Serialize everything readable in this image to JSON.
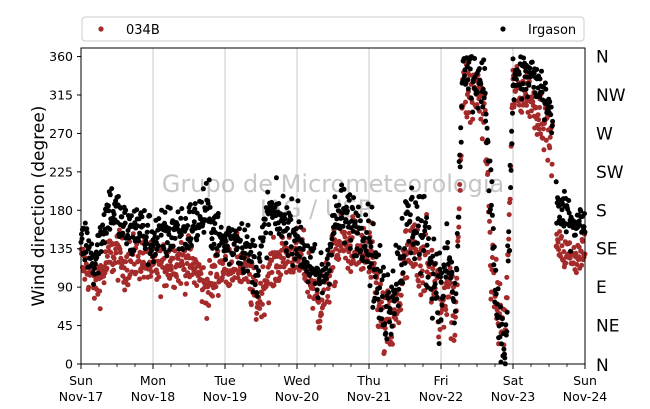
{
  "chart_data": {
    "type": "scatter",
    "ylabel": "Wind direction (degree)",
    "xlabel": "",
    "title": "",
    "ylim": [
      0,
      370
    ],
    "yticks": [
      0,
      45,
      90,
      135,
      180,
      225,
      270,
      315,
      360
    ],
    "xlim_days": [
      0,
      7
    ],
    "xticks": [
      {
        "day": "Sun",
        "date": "Nov-17"
      },
      {
        "day": "Mon",
        "date": "Nov-18"
      },
      {
        "day": "Tue",
        "date": "Nov-19"
      },
      {
        "day": "Wed",
        "date": "Nov-20"
      },
      {
        "day": "Thu",
        "date": "Nov-21"
      },
      {
        "day": "Fri",
        "date": "Nov-22"
      },
      {
        "day": "Sat",
        "date": "Nov-23"
      },
      {
        "day": "Sun",
        "date": "Nov-24"
      }
    ],
    "compass_labels": [
      "N",
      "NW",
      "W",
      "SW",
      "S",
      "SE",
      "E",
      "NE",
      "N"
    ],
    "compass_values": [
      360,
      315,
      270,
      225,
      180,
      135,
      90,
      45,
      0
    ],
    "grid": "vertical",
    "legend_position": "top",
    "watermark": [
      "Grupo de Micrometeorologia",
      "IAG / USP"
    ],
    "series": [
      {
        "name": "034B",
        "color": "#a52a2a",
        "segments": [
          {
            "t": [
              0.0,
              0.1,
              0.2,
              0.3,
              0.4,
              0.5,
              0.6,
              0.7,
              0.8,
              0.9,
              1.0
            ],
            "v": [
              120,
              110,
              95,
              105,
              125,
              130,
              115,
              120,
              128,
              118,
              112
            ],
            "spread": 14
          },
          {
            "t": [
              1.0,
              1.15,
              1.3,
              1.45,
              1.6,
              1.75,
              1.9,
              2.0
            ],
            "v": [
              112,
              115,
              120,
              118,
              110,
              85,
              110,
              115
            ],
            "spread": 14
          },
          {
            "t": [
              2.0,
              2.15,
              2.3,
              2.45,
              2.6,
              2.75,
              2.9,
              3.0
            ],
            "v": [
              115,
              120,
              110,
              70,
              105,
              120,
              130,
              125
            ],
            "spread": 14
          },
          {
            "t": [
              3.0,
              3.1,
              3.2,
              3.3,
              3.4,
              3.5,
              3.6,
              3.7,
              3.8,
              3.9,
              4.0
            ],
            "v": [
              125,
              120,
              95,
              65,
              85,
              120,
              140,
              135,
              140,
              130,
              125
            ],
            "spread": 16
          },
          {
            "t": [
              4.0,
              4.1,
              4.2,
              4.3,
              4.4,
              4.5,
              4.6,
              4.7,
              4.8,
              4.9,
              5.0
            ],
            "v": [
              125,
              90,
              45,
              40,
              60,
              120,
              130,
              125,
              120,
              100,
              60
            ],
            "spread": 22
          },
          {
            "t": [
              5.0,
              5.1,
              5.2,
              5.3,
              5.4,
              5.5,
              5.6,
              5.7,
              5.8,
              5.9,
              6.0
            ],
            "v": [
              60,
              100,
              40,
              330,
              310,
              320,
              300,
              110,
              60,
              40,
              320
            ],
            "spread": 20
          },
          {
            "t": [
              6.0,
              6.1,
              6.2,
              6.3,
              6.4,
              6.5,
              6.55
            ],
            "v": [
              320,
              315,
              320,
              300,
              290,
              270,
              250
            ],
            "spread": 14
          },
          {
            "t": [
              6.6,
              6.7,
              6.8,
              6.9,
              7.0
            ],
            "v": [
              140,
              130,
              128,
              125,
              130
            ],
            "spread": 10
          }
        ]
      },
      {
        "name": "Irgason",
        "color": "#000000",
        "segments": [
          {
            "t": [
              0.0,
              0.1,
              0.2,
              0.3,
              0.4,
              0.5,
              0.6,
              0.7,
              0.8,
              0.9,
              1.0
            ],
            "v": [
              150,
              140,
              120,
              160,
              185,
              175,
              160,
              150,
              165,
              150,
              145
            ],
            "spread": 16
          },
          {
            "t": [
              1.0,
              1.15,
              1.3,
              1.45,
              1.6,
              1.75,
              1.9,
              2.0
            ],
            "v": [
              145,
              150,
              160,
              155,
              165,
              180,
              150,
              140
            ],
            "spread": 16
          },
          {
            "t": [
              2.0,
              2.15,
              2.3,
              2.45,
              2.6,
              2.75,
              2.9,
              3.0
            ],
            "v": [
              140,
              150,
              135,
              110,
              175,
              170,
              160,
              150
            ],
            "spread": 16
          },
          {
            "t": [
              3.0,
              3.1,
              3.2,
              3.3,
              3.4,
              3.5,
              3.6,
              3.7,
              3.8,
              3.9,
              4.0
            ],
            "v": [
              150,
              130,
              110,
              95,
              110,
              160,
              175,
              170,
              165,
              160,
              150
            ],
            "spread": 18
          },
          {
            "t": [
              4.0,
              4.1,
              4.2,
              4.3,
              4.4,
              4.5,
              4.6,
              4.7,
              4.8,
              4.9,
              5.0
            ],
            "v": [
              150,
              100,
              70,
              80,
              110,
              150,
              170,
              160,
              140,
              110,
              80
            ],
            "spread": 26
          },
          {
            "t": [
              5.0,
              5.1,
              5.2,
              5.3,
              5.4,
              5.5,
              5.6,
              5.7,
              5.8,
              5.9,
              6.0
            ],
            "v": [
              80,
              130,
              60,
              340,
              335,
              330,
              320,
              180,
              30,
              10,
              330
            ],
            "spread": 22
          },
          {
            "t": [
              6.0,
              6.1,
              6.2,
              6.3,
              6.4,
              6.5,
              6.55
            ],
            "v": [
              340,
              335,
              340,
              330,
              320,
              300,
              280
            ],
            "spread": 14
          },
          {
            "t": [
              6.6,
              6.7,
              6.8,
              6.9,
              7.0
            ],
            "v": [
              190,
              175,
              170,
              165,
              168
            ],
            "spread": 12
          }
        ]
      }
    ]
  }
}
